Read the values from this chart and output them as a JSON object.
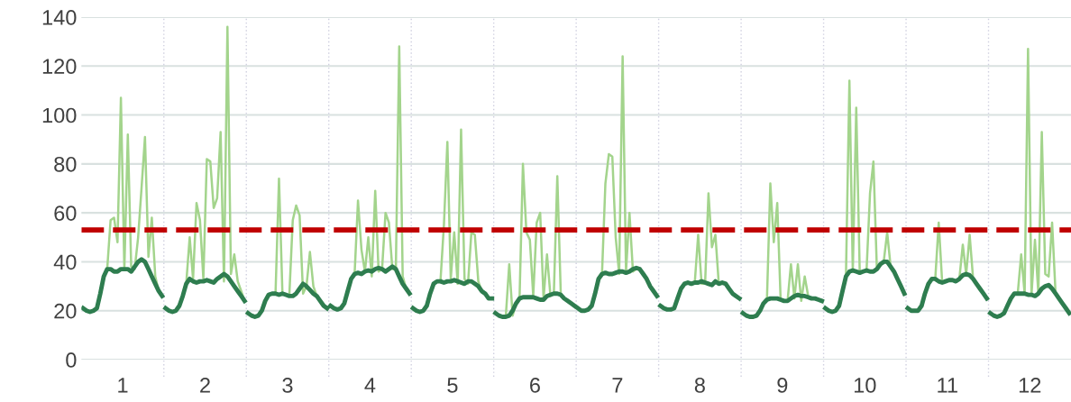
{
  "chart_data": {
    "type": "line",
    "x": [
      0.521,
      0.563,
      0.604,
      0.646,
      0.688,
      0.729,
      0.771,
      0.813,
      0.854,
      0.896,
      0.938,
      0.979,
      1.021,
      1.063,
      1.104,
      1.146,
      1.188,
      1.229,
      1.271,
      1.313,
      1.354,
      1.396,
      1.438,
      1.479,
      1.5,
      1.521,
      1.563,
      1.604,
      1.646,
      1.688,
      1.729,
      1.771,
      1.813,
      1.854,
      1.896,
      1.938,
      1.979,
      2.021,
      2.063,
      2.104,
      2.146,
      2.188,
      2.229,
      2.271,
      2.313,
      2.354,
      2.396,
      2.438,
      2.479,
      2.5,
      2.521,
      2.563,
      2.604,
      2.646,
      2.688,
      2.729,
      2.771,
      2.813,
      2.854,
      2.896,
      2.938,
      2.979,
      3.021,
      3.063,
      3.104,
      3.146,
      3.188,
      3.229,
      3.271,
      3.313,
      3.354,
      3.396,
      3.438,
      3.479,
      3.5,
      3.521,
      3.563,
      3.604,
      3.646,
      3.688,
      3.729,
      3.771,
      3.813,
      3.854,
      3.896,
      3.938,
      3.979,
      4.021,
      4.063,
      4.104,
      4.146,
      4.188,
      4.229,
      4.271,
      4.313,
      4.354,
      4.396,
      4.438,
      4.479,
      4.5,
      4.521,
      4.563,
      4.604,
      4.646,
      4.688,
      4.729,
      4.771,
      4.813,
      4.854,
      4.896,
      4.938,
      4.979,
      5.021,
      5.063,
      5.104,
      5.146,
      5.188,
      5.229,
      5.271,
      5.313,
      5.354,
      5.396,
      5.438,
      5.479,
      5.5,
      5.521,
      5.563,
      5.604,
      5.646,
      5.688,
      5.729,
      5.771,
      5.813,
      5.854,
      5.896,
      5.938,
      5.979,
      6.021,
      6.063,
      6.104,
      6.146,
      6.188,
      6.229,
      6.271,
      6.313,
      6.354,
      6.396,
      6.438,
      6.479,
      6.5,
      6.521,
      6.563,
      6.604,
      6.646,
      6.688,
      6.729,
      6.771,
      6.813,
      6.854,
      6.896,
      6.938,
      6.979,
      7.021,
      7.063,
      7.104,
      7.146,
      7.188,
      7.229,
      7.271,
      7.313,
      7.354,
      7.396,
      7.438,
      7.479,
      7.5,
      7.521,
      7.563,
      7.604,
      7.646,
      7.688,
      7.729,
      7.771,
      7.813,
      7.854,
      7.896,
      7.938,
      7.979,
      8.021,
      8.063,
      8.104,
      8.146,
      8.188,
      8.229,
      8.271,
      8.313,
      8.354,
      8.396,
      8.438,
      8.479,
      8.5,
      8.521,
      8.563,
      8.604,
      8.646,
      8.688,
      8.729,
      8.771,
      8.813,
      8.854,
      8.896,
      8.938,
      8.979,
      9.021,
      9.063,
      9.104,
      9.146,
      9.188,
      9.229,
      9.271,
      9.313,
      9.354,
      9.396,
      9.438,
      9.479,
      9.5,
      9.521,
      9.563,
      9.604,
      9.646,
      9.688,
      9.729,
      9.771,
      9.813,
      9.854,
      9.896,
      9.938,
      9.979,
      10.021,
      10.063,
      10.104,
      10.146,
      10.188,
      10.229,
      10.271,
      10.313,
      10.354,
      10.396,
      10.438,
      10.479,
      10.5,
      10.521,
      10.563,
      10.604,
      10.646,
      10.688,
      10.729,
      10.771,
      10.813,
      10.854,
      10.896,
      10.938,
      10.979,
      11.021,
      11.063,
      11.104,
      11.146,
      11.188,
      11.229,
      11.271,
      11.313,
      11.354,
      11.396,
      11.438,
      11.479,
      11.5,
      11.521,
      11.563,
      11.604,
      11.646,
      11.688,
      11.729,
      11.771,
      11.813,
      11.854,
      11.896,
      11.938,
      11.979,
      12.021,
      12.063,
      12.104,
      12.146,
      12.188,
      12.229,
      12.271,
      12.313,
      12.354,
      12.396,
      12.438,
      12.479
    ],
    "series": [
      {
        "color": "#a3d48c",
        "values": [
          21,
          20,
          19.5,
          20,
          21,
          27,
          34,
          37,
          57,
          58,
          48,
          107,
          37,
          92,
          38,
          37,
          50,
          70,
          91,
          42,
          58,
          34,
          28,
          26,
          null,
          21,
          20,
          19.5,
          20,
          22,
          26,
          31,
          50,
          33,
          64,
          57,
          33,
          82,
          81,
          62,
          66,
          93,
          32,
          136,
          35,
          43,
          32,
          28,
          24,
          null,
          19,
          18,
          17.5,
          18,
          20,
          24,
          26.5,
          27,
          27,
          74,
          27,
          26.5,
          26,
          57,
          63,
          59,
          27,
          30,
          44,
          30,
          26,
          24,
          22,
          21,
          null,
          22,
          21,
          20.5,
          21,
          23,
          28,
          33,
          35,
          65,
          45,
          36,
          50,
          34,
          69,
          36,
          37,
          60,
          56,
          37,
          37,
          128,
          34,
          29,
          27,
          null,
          21,
          20,
          19.5,
          20,
          22,
          27,
          31,
          32,
          32,
          55,
          89,
          33,
          52,
          31,
          94,
          33,
          31,
          52,
          51,
          32,
          28,
          27,
          25,
          25,
          null,
          19,
          18,
          17.5,
          17.5,
          39,
          18,
          23,
          25,
          80,
          52,
          49,
          26,
          56,
          60,
          25,
          43,
          26,
          27,
          75,
          27,
          25,
          24,
          23,
          22,
          null,
          21,
          20,
          20,
          20.5,
          22,
          27,
          33,
          35,
          72,
          84,
          83,
          50,
          35,
          124,
          36,
          60,
          36,
          37,
          37,
          35,
          33,
          30,
          28,
          26,
          null,
          22,
          21,
          20.5,
          20.5,
          21,
          25,
          29,
          31,
          31.5,
          31,
          31.5,
          51,
          31,
          31,
          68,
          46,
          51,
          31,
          31.5,
          31,
          29,
          27,
          26,
          25,
          null,
          19,
          18,
          17.5,
          17.5,
          18,
          20,
          23,
          24.5,
          72,
          48,
          64,
          24.5,
          24,
          24,
          39,
          25,
          39,
          24,
          34,
          26,
          25,
          25,
          24.5,
          24,
          null,
          21,
          20,
          19.5,
          20,
          22,
          28,
          34,
          114,
          36,
          103,
          36,
          36,
          36.5,
          68,
          81,
          37,
          39,
          40,
          52,
          38,
          36,
          33,
          30,
          27,
          null,
          21,
          20,
          20,
          20,
          22,
          27,
          31,
          33,
          33,
          56,
          31.5,
          32,
          32.5,
          32.5,
          32,
          33,
          47,
          35,
          51,
          33,
          31,
          29,
          27,
          25,
          null,
          19,
          18,
          17.5,
          18,
          19,
          22,
          25,
          27,
          27,
          43,
          27,
          127,
          26.5,
          49,
          27,
          93,
          35,
          34,
          56,
          27,
          25,
          23,
          21,
          19
        ]
      },
      {
        "color": "#2e7d4f",
        "values": [
          21,
          20,
          19.5,
          20,
          21,
          27,
          34,
          37,
          37,
          36,
          36,
          37,
          37,
          37,
          36,
          38,
          40,
          41,
          40,
          37,
          34,
          31,
          28,
          26,
          null,
          21,
          20,
          19.5,
          20,
          22,
          26,
          31,
          33,
          32,
          31.5,
          32,
          32,
          32.5,
          32,
          31.5,
          33,
          34,
          35,
          34,
          32,
          30,
          28,
          26,
          24,
          null,
          19,
          18,
          17.5,
          18,
          20,
          24,
          26.5,
          27,
          27,
          26.5,
          27,
          26.5,
          26,
          26,
          27,
          29,
          31,
          30,
          28.5,
          27,
          26,
          24,
          22,
          21,
          null,
          22,
          21,
          20.5,
          21,
          23,
          28,
          33,
          35,
          35.5,
          35,
          36,
          36.5,
          36,
          37,
          37.5,
          37,
          36,
          37,
          38,
          37,
          34,
          31,
          29,
          27,
          null,
          21,
          20,
          19.5,
          20,
          22,
          27,
          31,
          32,
          32,
          31.5,
          32,
          32,
          32.5,
          32,
          31.5,
          31,
          32,
          32,
          31,
          30,
          28,
          27,
          25,
          25,
          null,
          19,
          18,
          17.5,
          17.5,
          18,
          20,
          23,
          25,
          25.5,
          25.5,
          25.5,
          25.5,
          25,
          24.5,
          24.5,
          26,
          26.5,
          27,
          27,
          26.5,
          25,
          24,
          23,
          22,
          null,
          21,
          20,
          20,
          20.5,
          22,
          27,
          33,
          35,
          35.5,
          35,
          35,
          35.5,
          36,
          36,
          35.5,
          36,
          37,
          37.5,
          37,
          35,
          33,
          30,
          28,
          26,
          null,
          22,
          21,
          20.5,
          20.5,
          21,
          25,
          29,
          31,
          31.5,
          31,
          31.5,
          31.5,
          32,
          31.5,
          31,
          30.5,
          32,
          31,
          31.5,
          31,
          29,
          27,
          26,
          25,
          null,
          19,
          18,
          17.5,
          17.5,
          18,
          20,
          23,
          24.5,
          25,
          25,
          25,
          24.5,
          24,
          24,
          25,
          26,
          26.5,
          26,
          26,
          25.5,
          25,
          25,
          24.5,
          24,
          null,
          21,
          20,
          19.5,
          20,
          22,
          28,
          34,
          36,
          36.5,
          36,
          35.5,
          36,
          36.5,
          36,
          36,
          37,
          39,
          40,
          40,
          38,
          36,
          33,
          30,
          27,
          null,
          21,
          20,
          20,
          20,
          22,
          27,
          31,
          33,
          33,
          32,
          31.5,
          32,
          32.5,
          32.5,
          32,
          33,
          34.5,
          35,
          34.5,
          33,
          31,
          29,
          27,
          25,
          null,
          19,
          18,
          17.5,
          18,
          19,
          22,
          25,
          27,
          27,
          27,
          27,
          26.5,
          26.5,
          26,
          27,
          29,
          30,
          30.5,
          29,
          27,
          25,
          23,
          21,
          19
        ]
      }
    ],
    "xlim": [
      0.5,
      12.5
    ],
    "xticks": [
      1,
      2,
      3,
      4,
      5,
      6,
      7,
      8,
      9,
      10,
      11,
      12
    ],
    "ylim": [
      0,
      140
    ],
    "yticks": [
      0,
      20,
      40,
      60,
      80,
      100,
      120,
      140
    ],
    "grid": "y",
    "legend": false,
    "marker": "none",
    "line_style": "solid",
    "ref_lines": [
      {
        "axis": "y",
        "value": 53,
        "color": "#c00000",
        "line_style": "dashed"
      },
      {
        "axis": "x",
        "value": 1.5,
        "color": "#cfcfdf",
        "line_style": "dotted"
      },
      {
        "axis": "x",
        "value": 2.5,
        "color": "#cfcfdf",
        "line_style": "dotted"
      },
      {
        "axis": "x",
        "value": 3.5,
        "color": "#cfcfdf",
        "line_style": "dotted"
      },
      {
        "axis": "x",
        "value": 4.5,
        "color": "#cfcfdf",
        "line_style": "dotted"
      },
      {
        "axis": "x",
        "value": 5.5,
        "color": "#cfcfdf",
        "line_style": "dotted"
      },
      {
        "axis": "x",
        "value": 6.5,
        "color": "#cfcfdf",
        "line_style": "dotted"
      },
      {
        "axis": "x",
        "value": 7.5,
        "color": "#cfcfdf",
        "line_style": "dotted"
      },
      {
        "axis": "x",
        "value": 8.5,
        "color": "#cfcfdf",
        "line_style": "dotted"
      },
      {
        "axis": "x",
        "value": 9.5,
        "color": "#cfcfdf",
        "line_style": "dotted"
      },
      {
        "axis": "x",
        "value": 10.5,
        "color": "#cfcfdf",
        "line_style": "dotted"
      },
      {
        "axis": "x",
        "value": 11.5,
        "color": "#cfcfdf",
        "line_style": "dotted"
      }
    ]
  }
}
